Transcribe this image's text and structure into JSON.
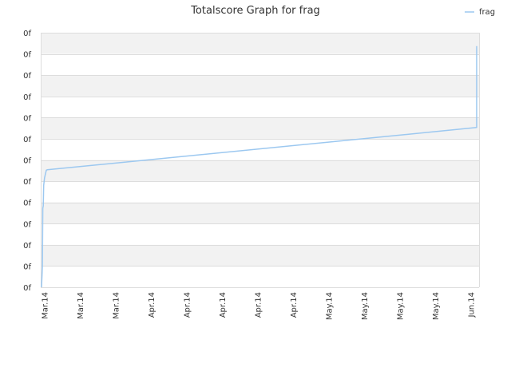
{
  "chart_data": {
    "type": "line",
    "title": "Totalscore Graph for frag",
    "xlabel": "",
    "ylabel": "",
    "legend": {
      "position": "top-right",
      "entries": [
        "frag"
      ]
    },
    "grid": true,
    "y_tick_labels": [
      "0f",
      "0f",
      "0f",
      "0f",
      "0f",
      "0f",
      "0f",
      "0f",
      "0f",
      "0f",
      "0f",
      "0f",
      "0f"
    ],
    "x_tick_labels": [
      "Mar.14",
      "Mar.14",
      "Mar.14",
      "Apr.14",
      "Apr.14",
      "Apr.14",
      "Apr.14",
      "Apr.14",
      "May.14",
      "May.14",
      "May.14",
      "May.14",
      "Jun.14"
    ],
    "colors": {
      "series": "#9cc8f0",
      "band": "#f2f2f2",
      "grid": "#dddddd"
    },
    "series": [
      {
        "name": "frag",
        "points": [
          [
            0.0,
            0.0
          ],
          [
            0.002,
            0.08
          ],
          [
            0.003,
            0.31
          ],
          [
            0.004,
            0.32
          ],
          [
            0.005,
            0.4
          ],
          [
            0.007,
            0.43
          ],
          [
            0.011,
            0.46
          ],
          [
            0.013,
            0.4615
          ],
          [
            1.0,
            0.6275
          ],
          [
            1.0,
            0.9475
          ]
        ]
      }
    ]
  }
}
